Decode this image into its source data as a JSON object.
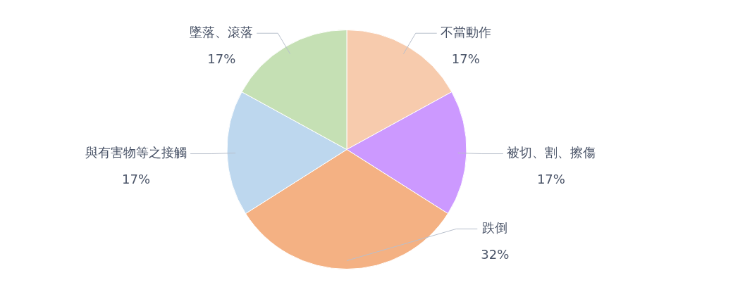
{
  "chart_data": {
    "type": "pie",
    "categories": [
      "不當動作",
      "被切、割、擦傷",
      "跌倒",
      "與有害物等之接觸",
      "墜落、滾落"
    ],
    "values": [
      17,
      17,
      32,
      17,
      17
    ],
    "value_labels": [
      "17%",
      "17%",
      "32%",
      "17%",
      "17%"
    ],
    "colors": [
      "#f7cbad",
      "#cc99ff",
      "#f4b183",
      "#bdd7ee",
      "#c5e0b4"
    ],
    "legend": false
  }
}
